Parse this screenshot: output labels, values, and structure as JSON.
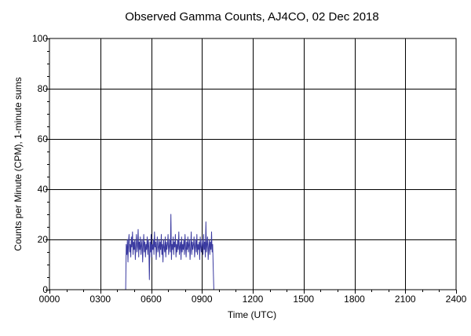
{
  "chart_data": {
    "type": "line",
    "title": "Observed Gamma Counts, AJ4CO, 02 Dec 2018",
    "xlabel": "Time (UTC)",
    "ylabel": "Counts per Minute (CPM), 1-minute sums",
    "xlim": [
      0,
      1440
    ],
    "ylim": [
      0,
      100
    ],
    "grid": true,
    "x_ticks": [
      {
        "value": 0,
        "label": "0000"
      },
      {
        "value": 180,
        "label": "0300"
      },
      {
        "value": 360,
        "label": "0600"
      },
      {
        "value": 540,
        "label": "0900"
      },
      {
        "value": 720,
        "label": "1200"
      },
      {
        "value": 900,
        "label": "1500"
      },
      {
        "value": 1080,
        "label": "1800"
      },
      {
        "value": 1260,
        "label": "2100"
      },
      {
        "value": 1440,
        "label": "2400"
      }
    ],
    "y_ticks": [
      {
        "value": 0,
        "label": "0"
      },
      {
        "value": 20,
        "label": "20"
      },
      {
        "value": 40,
        "label": "40"
      },
      {
        "value": 60,
        "label": "60"
      },
      {
        "value": 80,
        "label": "80"
      },
      {
        "value": 100,
        "label": "100"
      }
    ],
    "series": [
      {
        "color": "#3a3aa0",
        "x": [
          270,
          272,
          274,
          276,
          278,
          280,
          282,
          284,
          286,
          288,
          290,
          292,
          294,
          296,
          298,
          300,
          302,
          304,
          306,
          308,
          310,
          312,
          314,
          316,
          318,
          320,
          322,
          324,
          326,
          328,
          330,
          332,
          334,
          336,
          338,
          340,
          342,
          344,
          346,
          348,
          350,
          352,
          354,
          356,
          358,
          360,
          362,
          364,
          366,
          368,
          370,
          372,
          374,
          376,
          378,
          380,
          382,
          384,
          386,
          388,
          390,
          392,
          394,
          396,
          398,
          400,
          402,
          404,
          406,
          408,
          410,
          412,
          414,
          416,
          418,
          420,
          422,
          424,
          426,
          428,
          430,
          432,
          434,
          436,
          438,
          440,
          442,
          444,
          446,
          448,
          450,
          452,
          454,
          456,
          458,
          460,
          462,
          464,
          466,
          468,
          470,
          472,
          474,
          476,
          478,
          480,
          482,
          484,
          486,
          488,
          490,
          492,
          494,
          496,
          498,
          500,
          502,
          504,
          506,
          508,
          510,
          512,
          514,
          516,
          518,
          520,
          522,
          524,
          526,
          528,
          530,
          532,
          534,
          536,
          538,
          540,
          542,
          544,
          546,
          548,
          550,
          552,
          554,
          556,
          558,
          560,
          562,
          564,
          566,
          568,
          570,
          572,
          574,
          576,
          578,
          580,
          582
        ],
        "values": [
          0,
          18,
          14,
          20,
          11,
          19,
          22,
          15,
          18,
          13,
          21,
          17,
          23,
          14,
          19,
          16,
          20,
          12,
          18,
          22,
          15,
          17,
          24,
          13,
          19,
          16,
          21,
          14,
          18,
          20,
          11,
          17,
          22,
          15,
          19,
          13,
          18,
          16,
          21,
          14,
          20,
          17,
          4,
          19,
          15,
          22,
          13,
          18,
          16,
          20,
          14,
          23,
          17,
          19,
          12,
          18,
          21,
          15,
          17,
          20,
          13,
          19,
          16,
          22,
          14,
          18,
          11,
          20,
          17,
          15,
          21,
          13,
          19,
          16,
          18,
          22,
          14,
          17,
          20,
          15,
          30,
          12,
          18,
          16,
          21,
          14,
          19,
          17,
          22,
          13,
          18,
          15,
          20,
          16,
          23,
          14,
          17,
          19,
          12,
          21,
          15,
          18,
          16,
          20,
          14,
          22,
          17,
          13,
          19,
          16,
          21,
          15,
          18,
          20,
          12,
          17,
          23,
          14,
          19,
          16,
          18,
          21,
          13,
          17,
          20,
          15,
          22,
          14,
          18,
          16,
          19,
          12,
          21,
          17,
          15,
          20,
          18,
          14,
          22,
          16,
          19,
          13,
          27,
          15,
          18,
          21,
          12,
          17,
          20,
          14,
          19,
          16,
          23,
          15,
          18,
          9,
          0
        ]
      }
    ]
  }
}
